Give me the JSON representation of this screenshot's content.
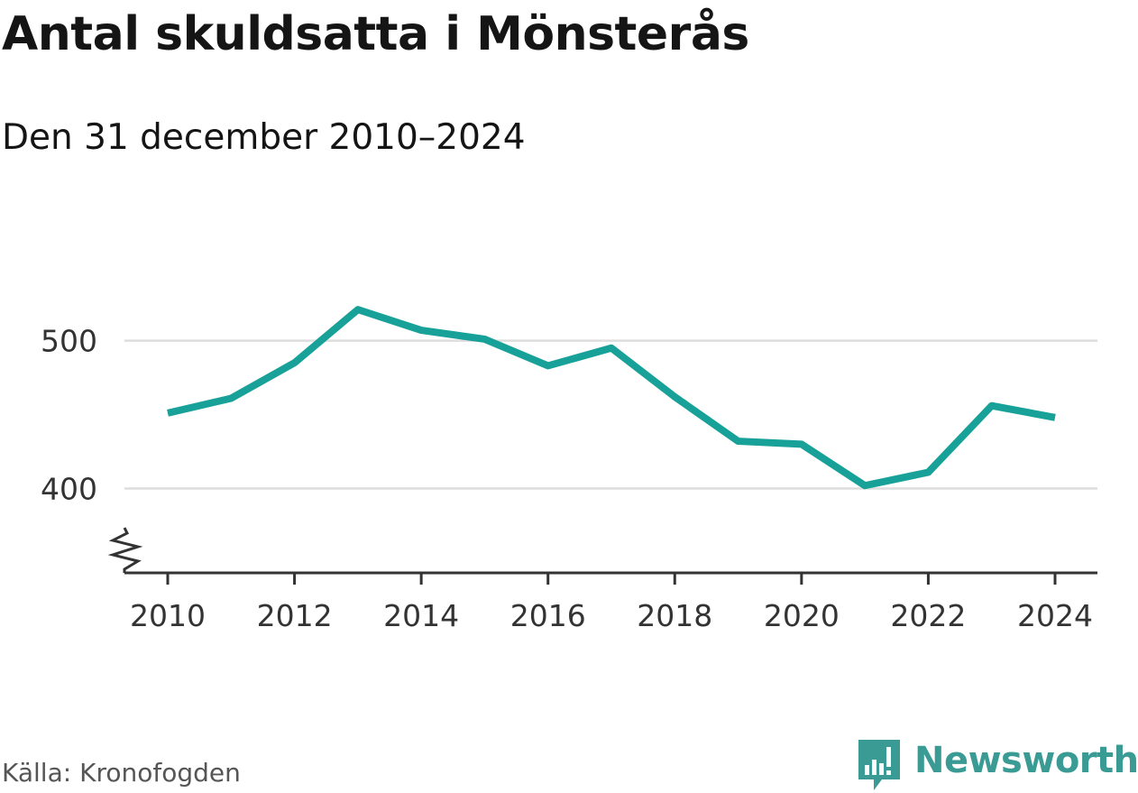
{
  "title": "Antal skuldsatta i Mönsterås",
  "subtitle": "Den 31 december 2010–2024",
  "source": "Källa: Kronofogden",
  "brand": "Newsworthy",
  "colors": {
    "line": "#17a198",
    "grid": "#dddddd",
    "axis": "#333333",
    "brand": "#3a9b94"
  },
  "chart_data": {
    "type": "line",
    "title": "Antal skuldsatta i Mönsterås",
    "subtitle": "Den 31 december 2010–2024",
    "xlabel": "",
    "ylabel": "",
    "x": [
      2010,
      2011,
      2012,
      2013,
      2014,
      2015,
      2016,
      2017,
      2018,
      2019,
      2020,
      2021,
      2022,
      2023,
      2024
    ],
    "series": [
      {
        "values": [
          451,
          461,
          485,
          521,
          507,
          501,
          483,
          495,
          462,
          432,
          430,
          402,
          411,
          456,
          448
        ]
      }
    ],
    "x_ticks": [
      "2010",
      "2012",
      "2014",
      "2016",
      "2018",
      "2020",
      "2022",
      "2024"
    ],
    "y_ticks": [
      "400",
      "500"
    ],
    "ylim": [
      343,
      525
    ],
    "y_axis_break": true,
    "grid": true,
    "legend": "none"
  }
}
